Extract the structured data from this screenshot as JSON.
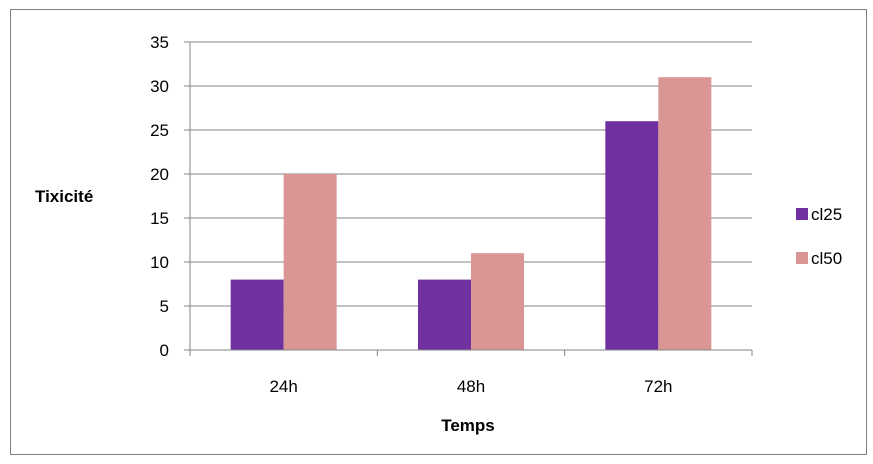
{
  "chart_data": {
    "type": "bar",
    "categories": [
      "24h",
      "48h",
      "72h"
    ],
    "series": [
      {
        "name": "cl25",
        "values": [
          8,
          8,
          26
        ],
        "color": "#7030a0"
      },
      {
        "name": "cl50",
        "values": [
          20,
          11,
          31
        ],
        "color": "#d99694"
      }
    ],
    "xlabel": "Temps",
    "ylabel": "Tixicité",
    "ylim": [
      0,
      35
    ],
    "yticks": [
      0,
      5,
      10,
      15,
      20,
      25,
      30,
      35
    ],
    "grid": true,
    "legend_position": "right"
  }
}
